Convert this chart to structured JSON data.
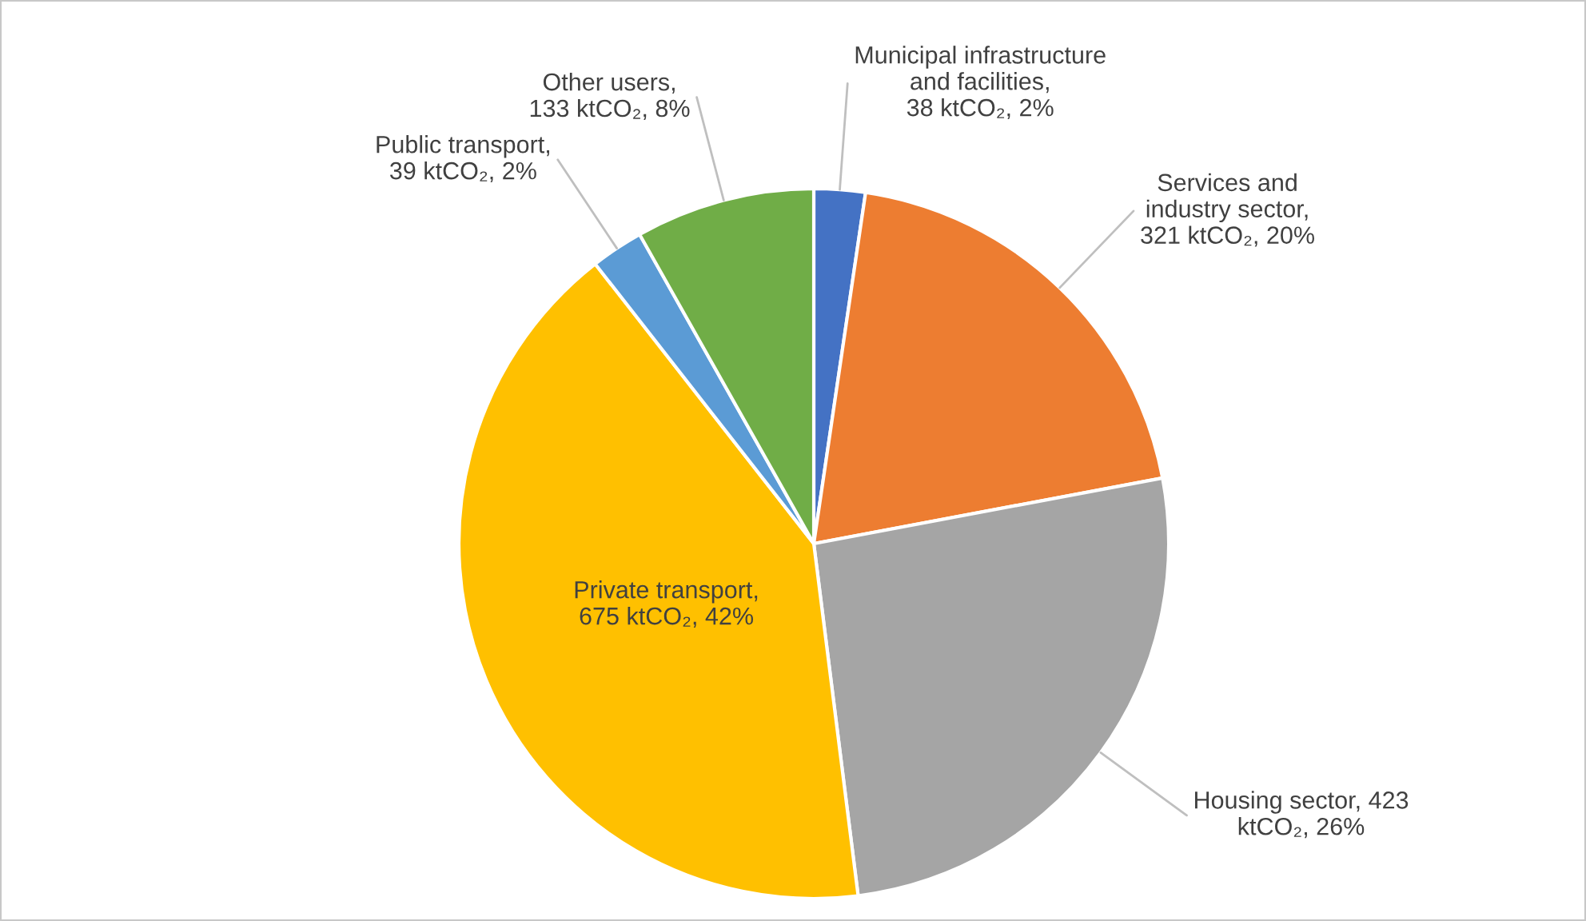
{
  "chart_data": {
    "type": "pie",
    "categories": [
      "Municipal infrastructure\nand facilities,\n38 ktCO₂, 2%",
      "Services and\nindustry sector,\n321 ktCO₂, 20%",
      "Housing sector, 423\nktCO₂, 26%",
      "Private transport,\n675 ktCO₂, 42%",
      "Public transport,\n39 ktCO₂, 2%",
      "Other users,\n133 ktCO₂, 8%"
    ],
    "values": [
      38,
      321,
      423,
      675,
      39,
      133
    ],
    "colors": [
      "#4472c4",
      "#ed7d31",
      "#a5a5a5",
      "#ffc000",
      "#5b9bd5",
      "#70ad47"
    ],
    "legend": false
  }
}
